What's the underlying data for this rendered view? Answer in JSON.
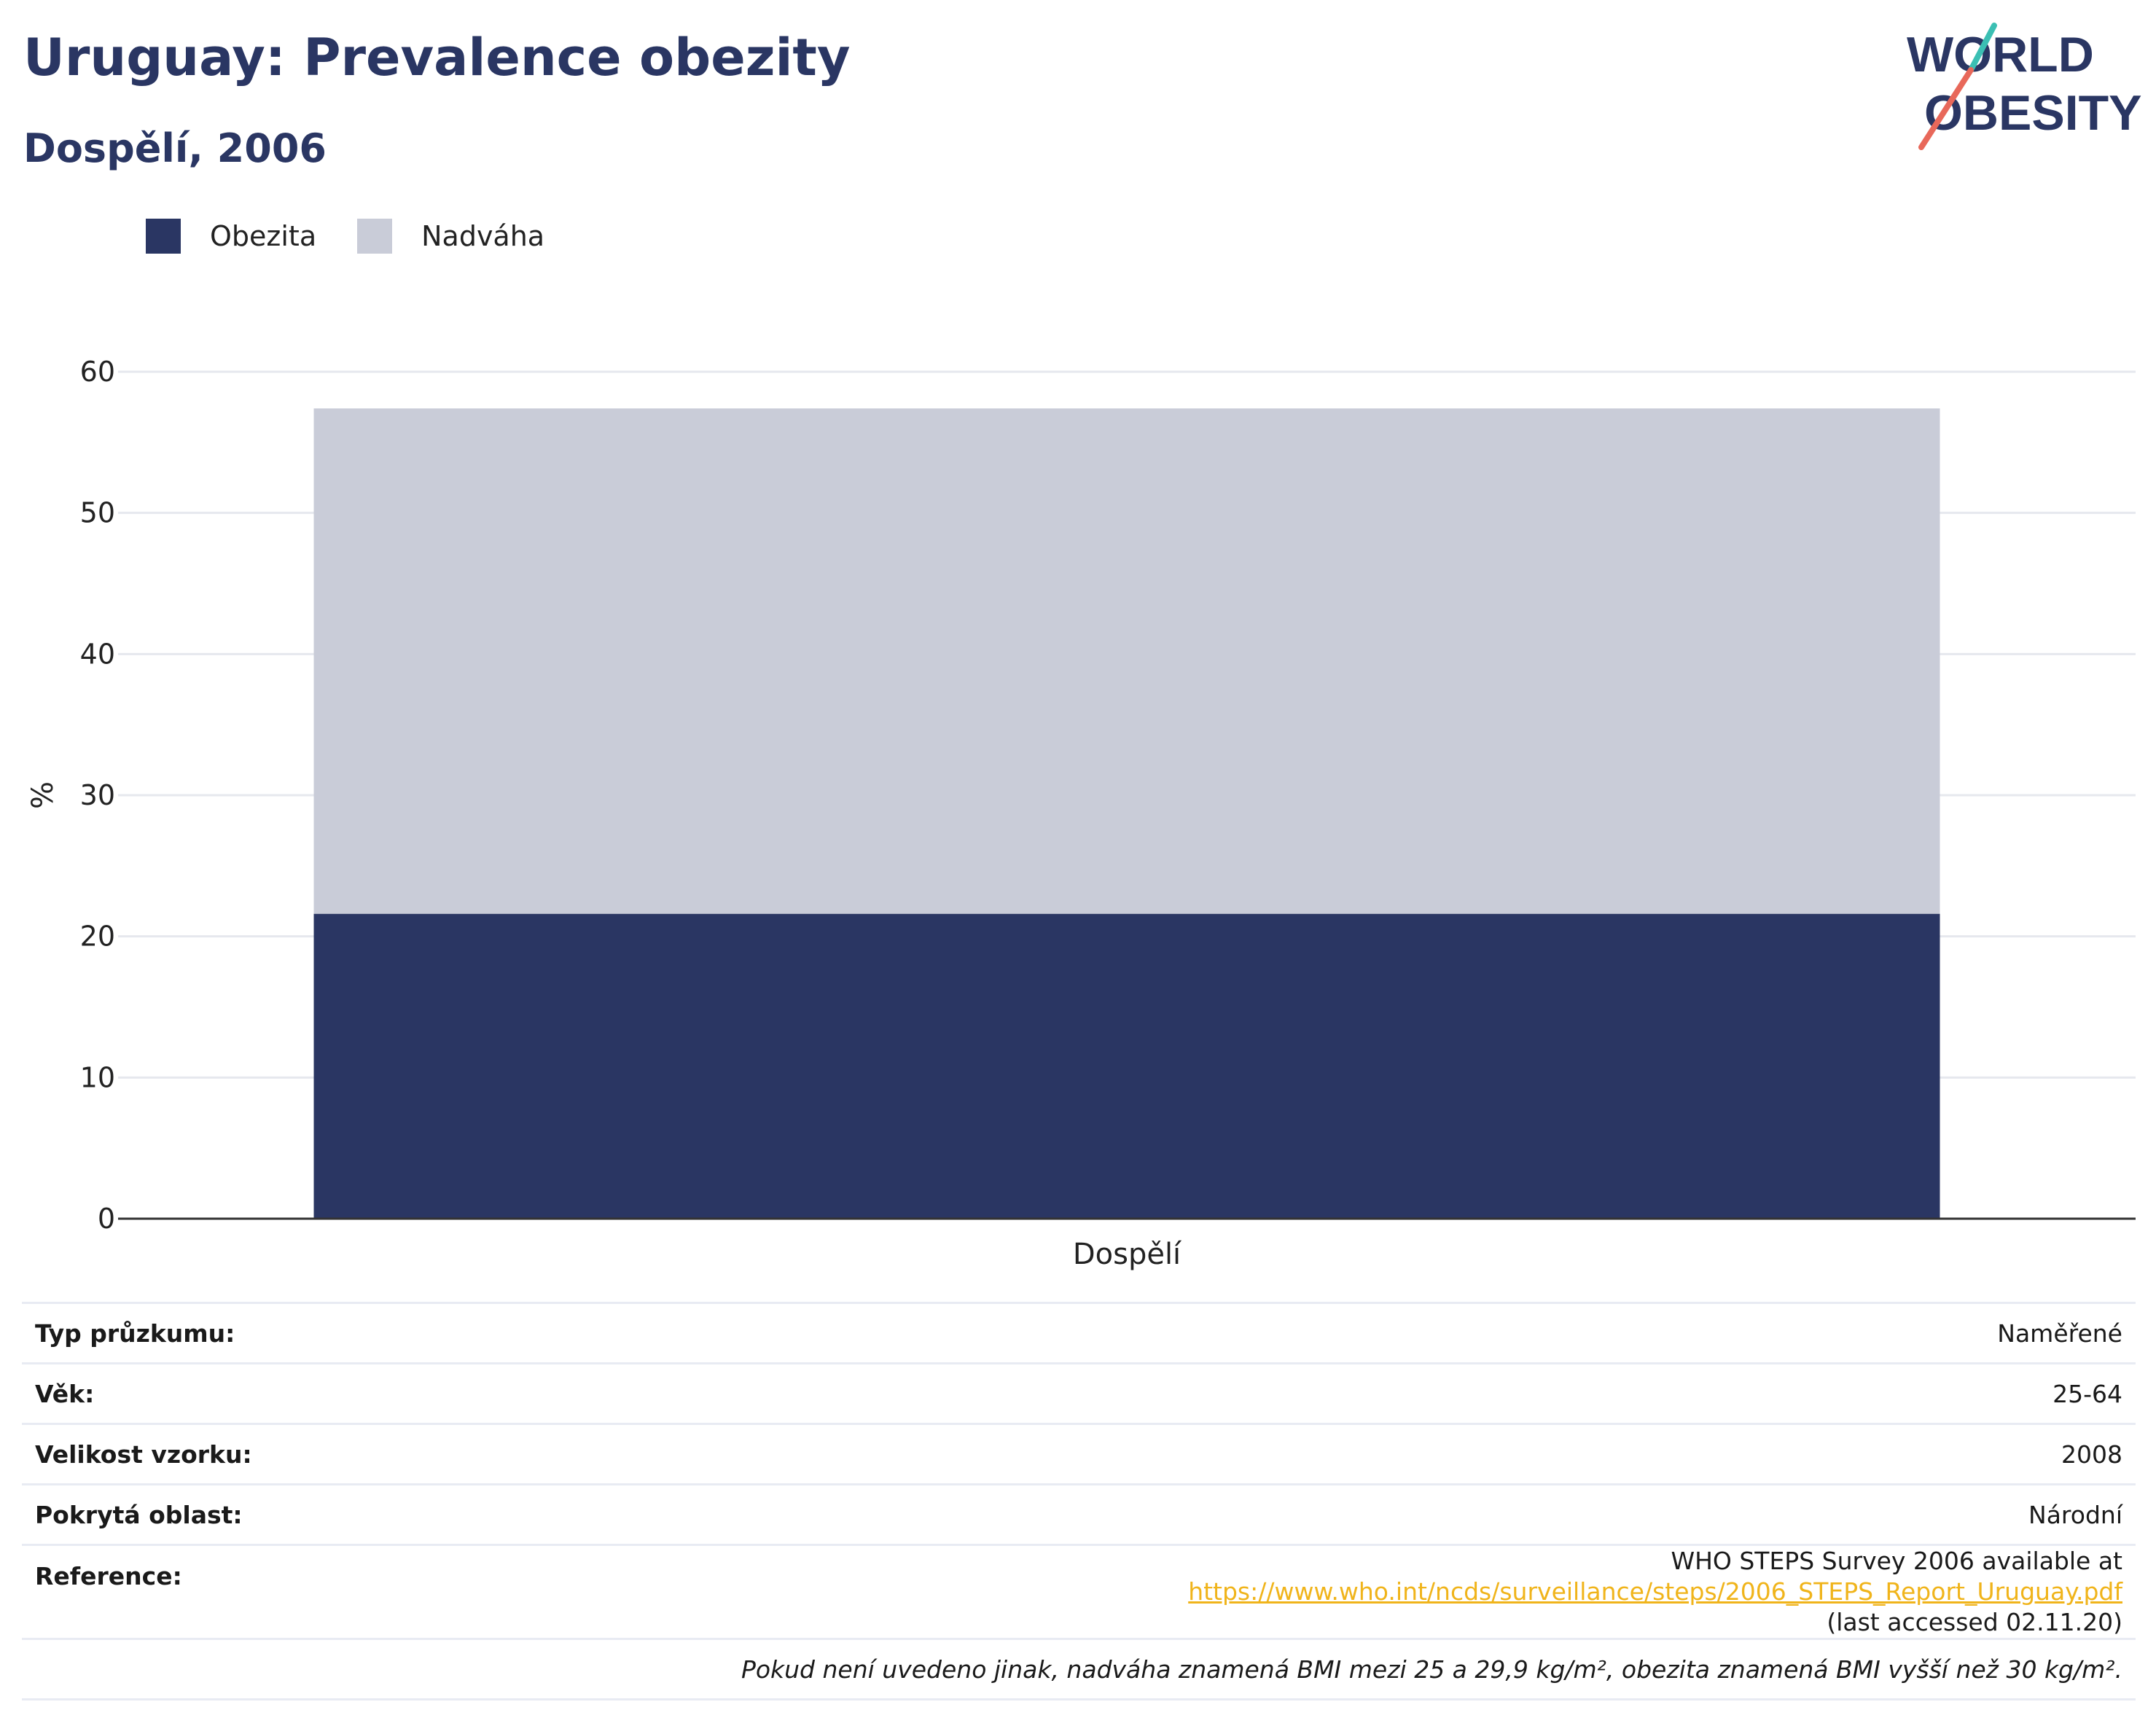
{
  "header": {
    "title": "Uruguay: Prevalence obezity",
    "subtitle": "Dospělí, 2006"
  },
  "logo": {
    "line1": "WORLD",
    "line2": "OBESITY",
    "colors": {
      "text": "#2a3663",
      "slash_teal": "#3bbfb3",
      "slash_red": "#e8685a"
    }
  },
  "legend": {
    "items": [
      {
        "label": "Obezita",
        "color": "#2a3663"
      },
      {
        "label": "Nadváha",
        "color": "#c9ccd8"
      }
    ]
  },
  "chart_data": {
    "type": "bar",
    "stacked": true,
    "categories": [
      "Dospělí"
    ],
    "series": [
      {
        "name": "Obezita",
        "values": [
          21.6
        ],
        "color": "#2a3663"
      },
      {
        "name": "Nadváha",
        "values": [
          35.8
        ],
        "color": "#c9ccd8"
      }
    ],
    "title": "Uruguay: Prevalence obezity",
    "subtitle": "Dospělí, 2006",
    "xlabel": "",
    "ylabel": "%",
    "ylim": [
      0,
      60
    ],
    "yticks": [
      0,
      10,
      20,
      30,
      40,
      50,
      60
    ],
    "grid": true,
    "legend_position": "top-left"
  },
  "info": {
    "rows": [
      {
        "key": "Typ průzkumu:",
        "value": "Naměřené"
      },
      {
        "key": "Věk:",
        "value": "25-64"
      },
      {
        "key": "Velikost vzorku:",
        "value": "2008"
      },
      {
        "key": "Pokrytá oblast:",
        "value": "Národní"
      }
    ],
    "reference": {
      "key": "Reference:",
      "prefix": "WHO STEPS Survey 2006 available at ",
      "link": "https://www.who.int/ncds/surveillance/steps/2006_STEPS_Report_Uruguay.pdf",
      "suffix": " (last accessed 02.11.20)"
    },
    "note": "Pokud není uvedeno jinak, nadváha znamená BMI mezi 25 a 29,9 kg/m², obezita znamená BMI vyšší než 30 kg/m²."
  }
}
